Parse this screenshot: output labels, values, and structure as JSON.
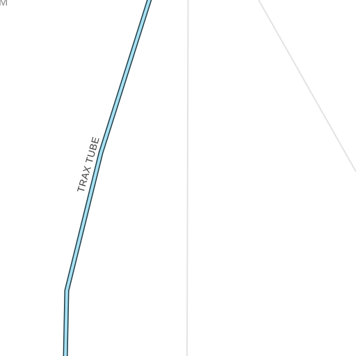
{
  "map": {
    "labels": {
      "corner_fragment": "M",
      "trax_tube": "TRAX TUBE"
    },
    "colors": {
      "background": "#ffffff",
      "tube_fill": "#a6e1f2",
      "tube_outline": "#1f3c47",
      "road_line": "#e3e3e3",
      "label_text": "#3a3a3a",
      "corner_label_text": "#8a8a8a"
    }
  }
}
